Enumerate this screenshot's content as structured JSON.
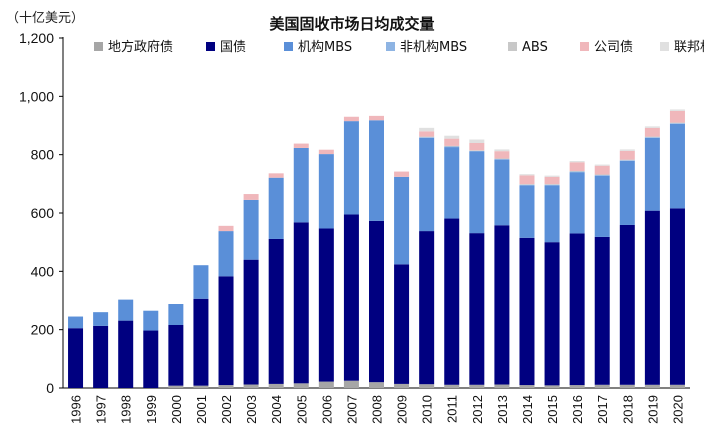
{
  "chart_data": {
    "type": "bar",
    "stacked": true,
    "title": "美国固收市场日均成交量",
    "unit_label": "（十亿美元）",
    "xlabel": "",
    "ylabel": "（十亿美元）",
    "ylim": [
      0,
      1200
    ],
    "yticks": [
      0,
      200,
      400,
      600,
      800,
      1000,
      1200
    ],
    "ytick_labels": [
      "0",
      "200",
      "400",
      "600",
      "800",
      "1,000",
      "1,200"
    ],
    "legend_position": "top",
    "categories": [
      "1996",
      "1997",
      "1998",
      "1999",
      "2000",
      "2001",
      "2002",
      "2003",
      "2004",
      "2005",
      "2006",
      "2007",
      "2008",
      "2009",
      "2010",
      "2011",
      "2012",
      "2013",
      "2014",
      "2015",
      "2016",
      "2017",
      "2018",
      "2019",
      "2020"
    ],
    "series": [
      {
        "name": "地方政府债",
        "color": "#a6a6a6",
        "values": [
          0,
          0,
          0,
          0,
          8,
          8,
          10,
          12,
          14,
          16,
          22,
          25,
          20,
          14,
          13,
          11,
          11,
          12,
          10,
          9,
          10,
          11,
          11,
          11,
          11
        ]
      },
      {
        "name": "国债",
        "color": "#000080",
        "values": [
          205,
          213,
          231,
          197,
          208,
          298,
          373,
          428,
          497,
          552,
          525,
          570,
          553,
          410,
          525,
          570,
          520,
          546,
          505,
          491,
          520,
          507,
          548,
          597,
          605
        ]
      },
      {
        "name": "机构MBS",
        "color": "#5a8fd8",
        "values": [
          40,
          47,
          72,
          68,
          72,
          115,
          155,
          205,
          210,
          255,
          255,
          320,
          345,
          300,
          320,
          245,
          280,
          225,
          180,
          195,
          210,
          210,
          220,
          250,
          290
        ]
      },
      {
        "name": "非机构MBS",
        "color": "#8eb4e3",
        "values": [
          0,
          0,
          0,
          0,
          0,
          0,
          0,
          0,
          0,
          0,
          0,
          0,
          0,
          0,
          2,
          2,
          2,
          2,
          2,
          2,
          2,
          2,
          2,
          2,
          2
        ]
      },
      {
        "name": "ABS",
        "color": "#c8c8c8",
        "values": [
          0,
          0,
          0,
          0,
          0,
          0,
          0,
          0,
          0,
          0,
          0,
          0,
          0,
          0,
          2,
          2,
          2,
          2,
          2,
          2,
          2,
          2,
          2,
          2,
          2
        ]
      },
      {
        "name": "公司债",
        "color": "#f0b7bb",
        "values": [
          0,
          0,
          0,
          0,
          0,
          0,
          18,
          20,
          15,
          15,
          15,
          15,
          15,
          18,
          18,
          25,
          25,
          25,
          30,
          25,
          30,
          30,
          30,
          30,
          40
        ]
      },
      {
        "name": "联邦机构证券",
        "color": "#e0e0e0",
        "values": [
          0,
          0,
          0,
          0,
          0,
          0,
          0,
          0,
          0,
          0,
          0,
          0,
          0,
          0,
          12,
          10,
          12,
          6,
          4,
          4,
          4,
          4,
          5,
          5,
          5
        ]
      }
    ]
  }
}
